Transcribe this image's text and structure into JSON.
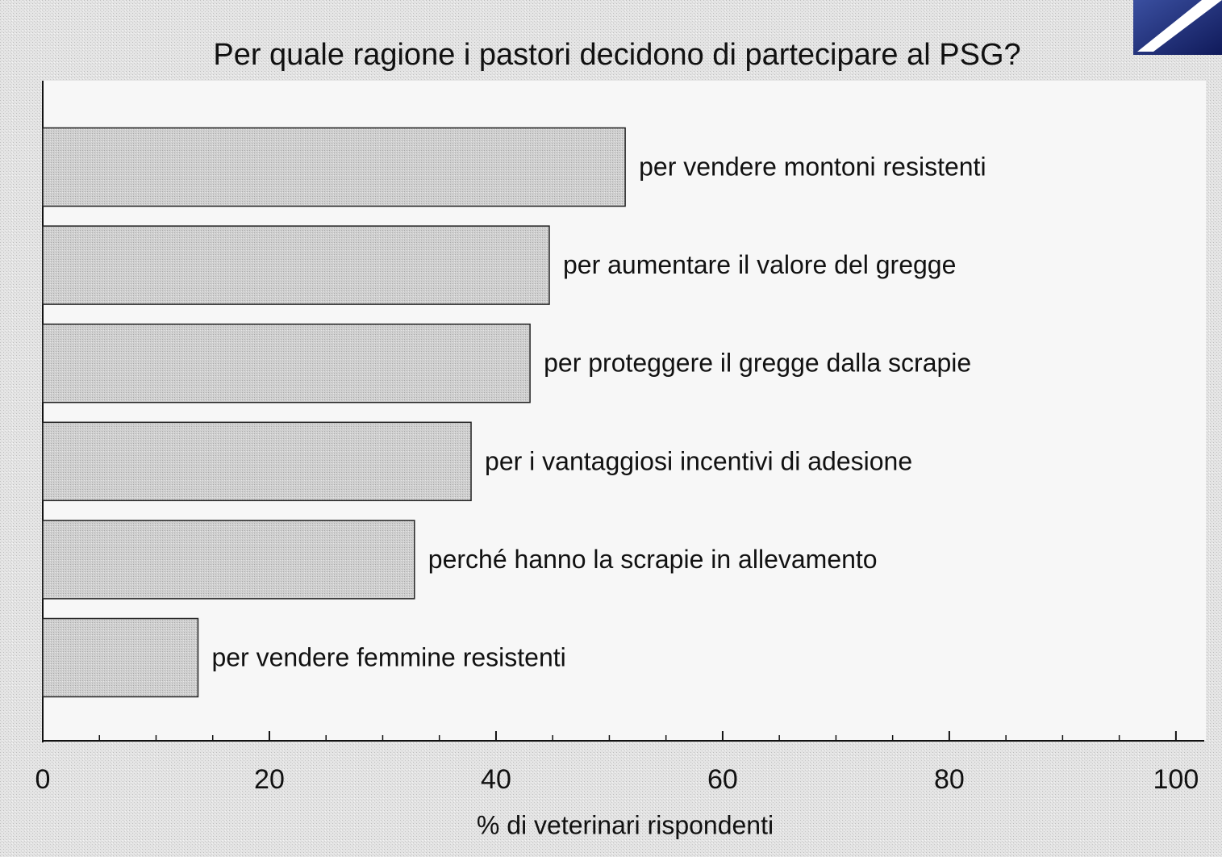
{
  "chart_data": {
    "type": "bar",
    "orientation": "horizontal",
    "title": "Per quale ragione i pastori decidono di partecipare al PSG?",
    "x_label": "% di veterinari rispondenti",
    "categories": [
      "per vendere montoni resistenti",
      "per aumentare il valore del gregge",
      "per proteggere il gregge dalla scrapie",
      "per i vantaggiosi incentivi di adesione",
      "perché hanno la scrapie in allevamento",
      "per vendere femmine resistenti"
    ],
    "values": [
      51.4,
      44.7,
      43,
      37.8,
      32.8,
      13.7
    ],
    "color": "#c8c8c8",
    "xlim": [
      0,
      102.5
    ],
    "xticks": [
      0,
      20,
      40,
      60,
      80,
      100
    ],
    "xminorticks": [
      5,
      10,
      15,
      25,
      30,
      35,
      45,
      50,
      55,
      65,
      70,
      75,
      85,
      90,
      95
    ],
    "grid": false
  }
}
